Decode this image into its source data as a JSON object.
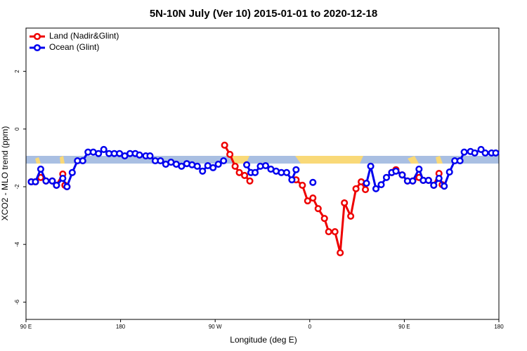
{
  "chart_data": {
    "type": "line",
    "title": "5N-10N July (Ver 10)   2015-01-01 to 2020-12-18",
    "xlabel": "Longitude (deg E)",
    "ylabel": "XCO2 - MLO trend (ppm)",
    "xlim": [
      90,
      540
    ],
    "ylim": [
      -6.6,
      3.5
    ],
    "xticks": [
      {
        "value": 90,
        "label": "90 E"
      },
      180,
      {
        "value": 270,
        "label": "90 W"
      },
      {
        "value": 360,
        "label": "0"
      },
      {
        "value": 450,
        "label": "90 E"
      },
      {
        "value": 540,
        "label": "180"
      }
    ],
    "yticks": [
      2,
      0,
      -2,
      -4,
      -6
    ],
    "legend": "top-left",
    "series": [
      {
        "name": "Land (Nadir&Glint)",
        "color": "#ee0000",
        "x": [
          95,
          99,
          104,
          109,
          115,
          119,
          125,
          127,
          129,
          null,
          279,
          284,
          289,
          293,
          298,
          303,
          null,
          347,
          353,
          358,
          363,
          368,
          374,
          378,
          384,
          389,
          393,
          399,
          404,
          409,
          413,
          null,
          438,
          442,
          448,
          453,
          458,
          464,
          468,
          473,
          478,
          483,
          486
        ],
        "values": [
          -1.83,
          -1.83,
          -1.68,
          -1.8,
          -1.8,
          -1.95,
          -1.56,
          -1.95,
          -2.0,
          null,
          -0.56,
          -0.88,
          -1.29,
          -1.51,
          -1.61,
          -1.8,
          null,
          -1.76,
          -1.95,
          -2.49,
          -2.39,
          -2.76,
          -3.1,
          -3.56,
          -3.56,
          -4.29,
          -2.56,
          -3.02,
          -2.07,
          -1.83,
          -2.1,
          null,
          -1.51,
          -1.41,
          -1.59,
          -1.8,
          -1.8,
          -1.68,
          -1.78,
          -1.78,
          -1.95,
          -1.54,
          -1.93
        ]
      },
      {
        "name": "Ocean (Glint)",
        "color": "#0000ee",
        "x": [
          95,
          99,
          104,
          109,
          115,
          119,
          125,
          129,
          134,
          139,
          144,
          149,
          154,
          159,
          164,
          169,
          174,
          179,
          184,
          189,
          194,
          198,
          204,
          208,
          213,
          218,
          223,
          228,
          233,
          238,
          243,
          248,
          253,
          258,
          263,
          268,
          273,
          278,
          null,
          300,
          304,
          308,
          313,
          318,
          323,
          328,
          333,
          338,
          343,
          347,
          null,
          363,
          null,
          414,
          418,
          423,
          428,
          433,
          438,
          442,
          448,
          453,
          458,
          464,
          468,
          473,
          478,
          483,
          488,
          493,
          498,
          503,
          507,
          513,
          517,
          523,
          527,
          533,
          537
        ],
        "values": [
          -1.83,
          -1.83,
          -1.39,
          -1.8,
          -1.8,
          -1.95,
          -1.71,
          -2.0,
          -1.51,
          -1.1,
          -1.1,
          -0.8,
          -0.8,
          -0.85,
          -0.71,
          -0.85,
          -0.85,
          -0.85,
          -0.93,
          -0.85,
          -0.85,
          -0.9,
          -0.93,
          -0.93,
          -1.1,
          -1.1,
          -1.22,
          -1.15,
          -1.22,
          -1.29,
          -1.2,
          -1.24,
          -1.29,
          -1.46,
          -1.27,
          -1.34,
          -1.22,
          -1.1,
          null,
          -1.24,
          -1.51,
          -1.51,
          -1.29,
          -1.27,
          -1.39,
          -1.46,
          -1.51,
          -1.51,
          -1.76,
          -1.41,
          null,
          -1.85,
          null,
          -1.88,
          -1.29,
          -2.07,
          -1.93,
          -1.68,
          -1.51,
          -1.46,
          -1.59,
          -1.8,
          -1.8,
          -1.39,
          -1.78,
          -1.78,
          -1.95,
          -1.71,
          -1.98,
          -1.49,
          -1.1,
          -1.1,
          -0.8,
          -0.78,
          -0.83,
          -0.71,
          -0.83,
          -0.83,
          -0.83
        ]
      }
    ]
  }
}
